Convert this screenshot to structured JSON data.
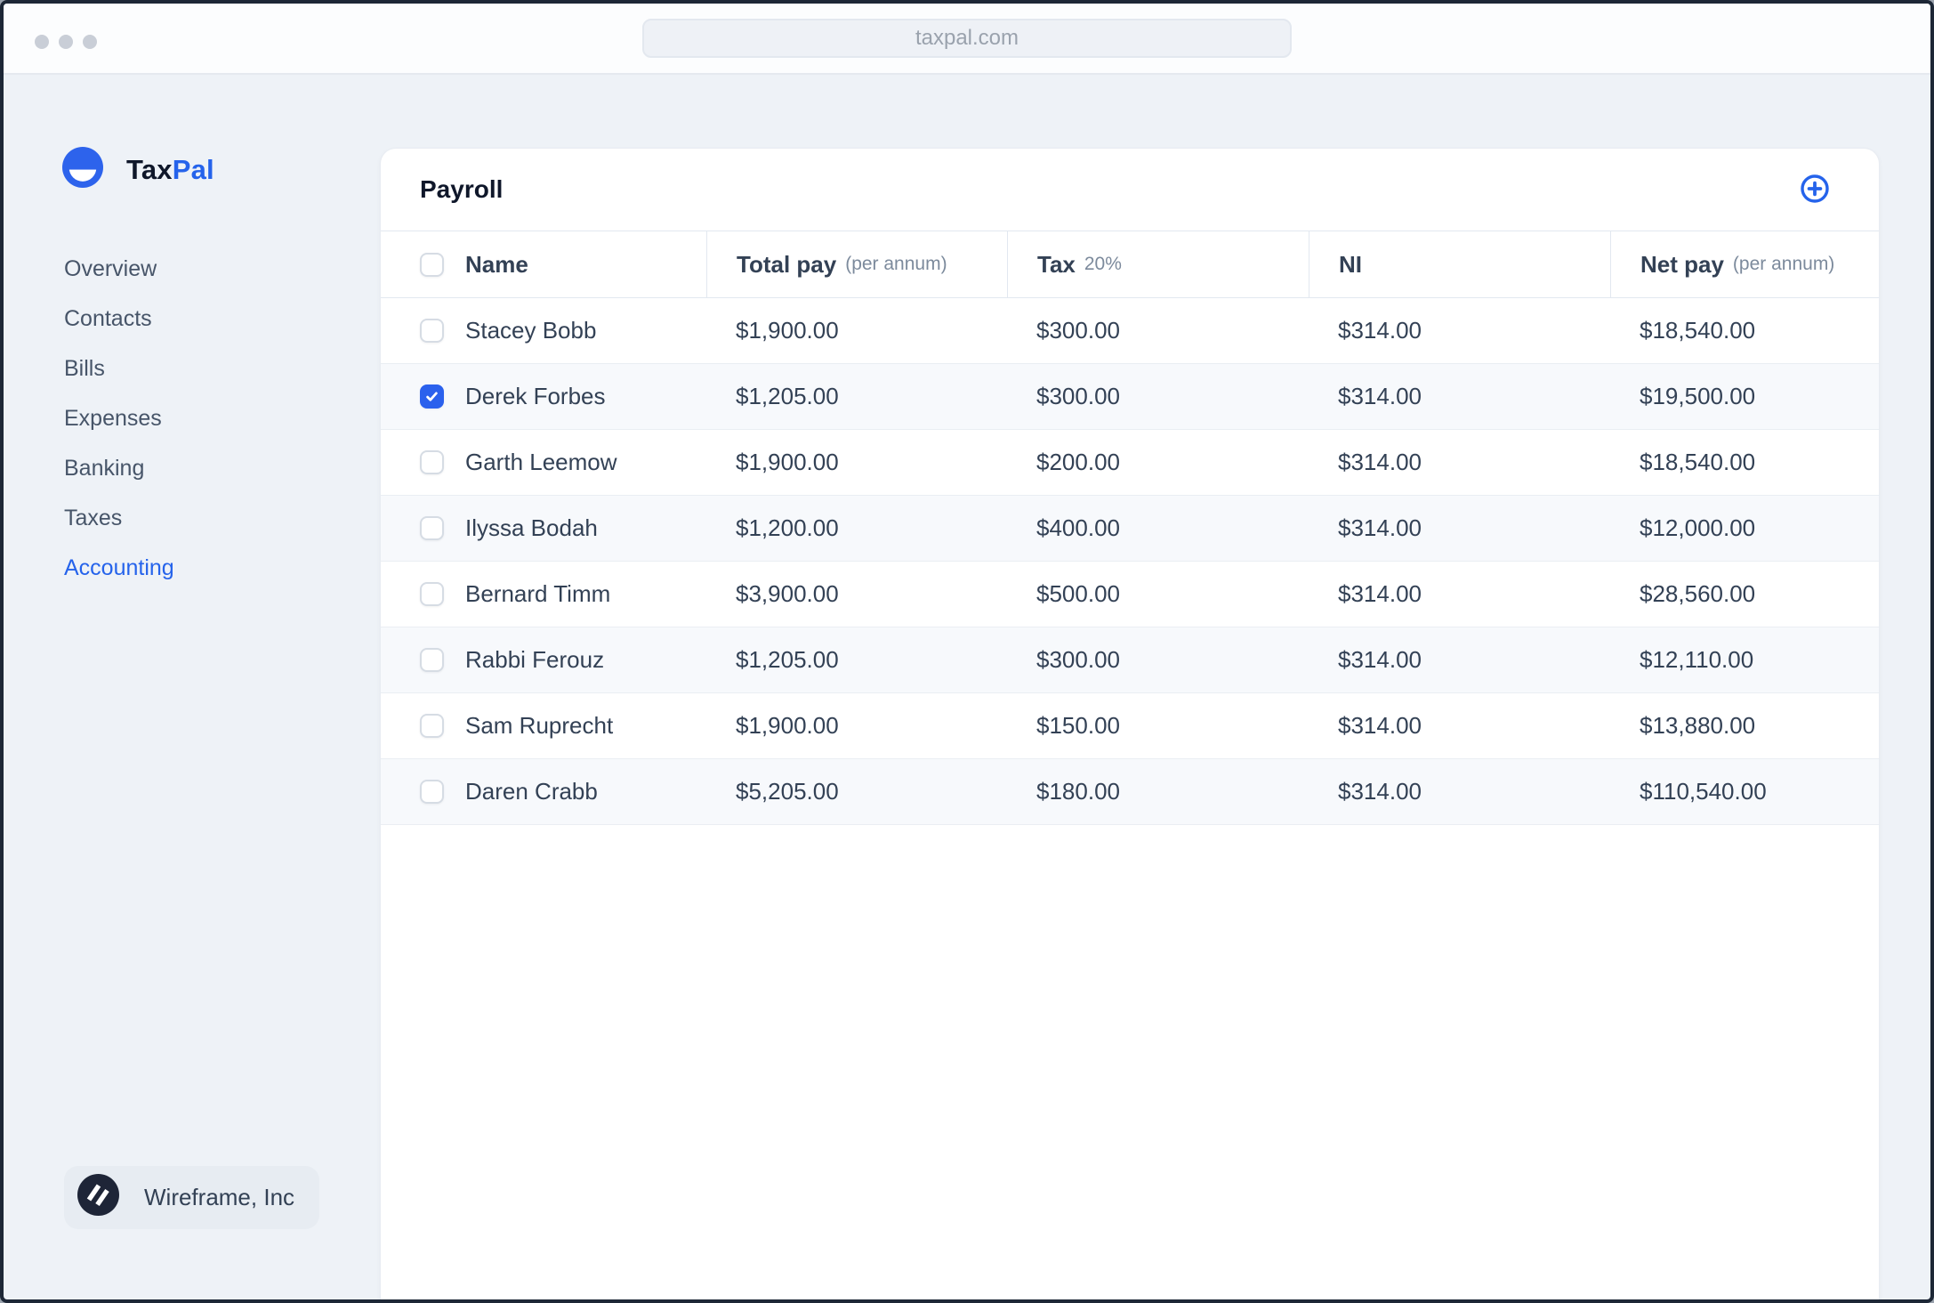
{
  "browser": {
    "url": "taxpal.com"
  },
  "brand": {
    "name_primary": "Tax",
    "name_accent": "Pal"
  },
  "sidebar": {
    "items": [
      {
        "label": "Overview",
        "active": false
      },
      {
        "label": "Contacts",
        "active": false
      },
      {
        "label": "Bills",
        "active": false
      },
      {
        "label": "Expenses",
        "active": false
      },
      {
        "label": "Banking",
        "active": false
      },
      {
        "label": "Taxes",
        "active": false
      },
      {
        "label": "Accounting",
        "active": true
      }
    ],
    "footer": {
      "company": "Wireframe, Inc"
    }
  },
  "payroll": {
    "title": "Payroll",
    "add_button_icon": "plus-circle-icon",
    "table": {
      "columns": [
        {
          "key": "name",
          "label": "Name",
          "sub": ""
        },
        {
          "key": "total_pay",
          "label": "Total pay",
          "sub": "(per annum)"
        },
        {
          "key": "tax",
          "label": "Tax",
          "sub": "20%"
        },
        {
          "key": "ni",
          "label": "NI",
          "sub": ""
        },
        {
          "key": "net_pay",
          "label": "Net pay",
          "sub": "(per annum)"
        }
      ],
      "header_checkbox_checked": false,
      "rows": [
        {
          "name": "Stacey Bobb",
          "total_pay": "$1,900.00",
          "tax": "$300.00",
          "ni": "$314.00",
          "net_pay": "$18,540.00",
          "checked": false
        },
        {
          "name": "Derek Forbes",
          "total_pay": "$1,205.00",
          "tax": "$300.00",
          "ni": "$314.00",
          "net_pay": "$19,500.00",
          "checked": true
        },
        {
          "name": "Garth Leemow",
          "total_pay": "$1,900.00",
          "tax": "$200.00",
          "ni": "$314.00",
          "net_pay": "$18,540.00",
          "checked": false
        },
        {
          "name": "Ilyssa Bodah",
          "total_pay": "$1,200.00",
          "tax": "$400.00",
          "ni": "$314.00",
          "net_pay": "$12,000.00",
          "checked": false
        },
        {
          "name": "Bernard Timm",
          "total_pay": "$3,900.00",
          "tax": "$500.00",
          "ni": "$314.00",
          "net_pay": "$28,560.00",
          "checked": false
        },
        {
          "name": "Rabbi Ferouz",
          "total_pay": "$1,205.00",
          "tax": "$300.00",
          "ni": "$314.00",
          "net_pay": "$12,110.00",
          "checked": false
        },
        {
          "name": "Sam Ruprecht",
          "total_pay": "$1,900.00",
          "tax": "$150.00",
          "ni": "$314.00",
          "net_pay": "$13,880.00",
          "checked": false
        },
        {
          "name": "Daren Crabb",
          "total_pay": "$5,205.00",
          "tax": "$180.00",
          "ni": "$314.00",
          "net_pay": "$110,540.00",
          "checked": false
        }
      ]
    }
  },
  "colors": {
    "accent_blue": "#2563eb",
    "logo_blue": "#2d63ec",
    "checkbox_blue": "#2b61ed",
    "text_dark": "#334155",
    "text_muted": "#7c8a9c",
    "row_alt_bg": "#f7f9fc",
    "border": "#e2e8f0",
    "page_bg": "#eef2f7",
    "badge_bg": "#e7ecf2",
    "badge_icon_bg": "#1e2537"
  }
}
